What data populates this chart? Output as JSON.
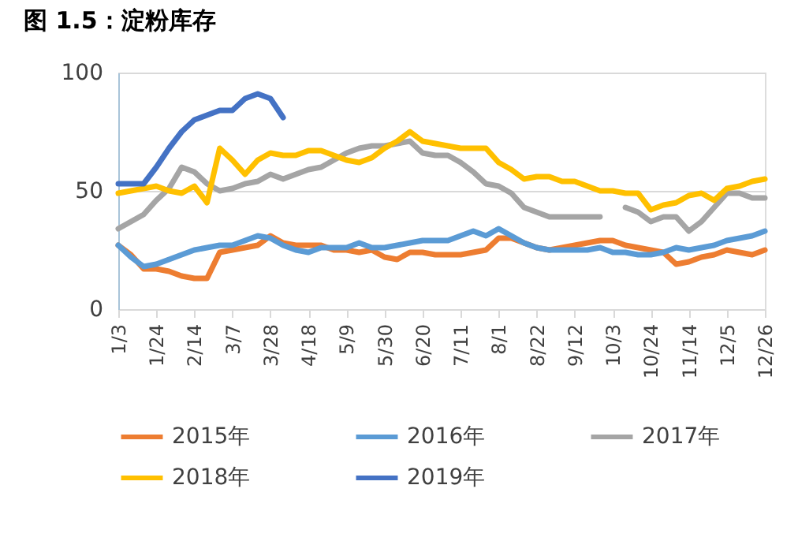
{
  "chart_data": {
    "type": "line",
    "title": "图 1.5：淀粉库存",
    "categories": [
      "1/3",
      null,
      null,
      "1/24",
      null,
      null,
      "2/14",
      null,
      null,
      "3/7",
      null,
      null,
      "3/28",
      null,
      null,
      "4/18",
      null,
      null,
      "5/9",
      null,
      null,
      "5/30",
      null,
      null,
      "6/20",
      null,
      null,
      "7/11",
      null,
      null,
      "8/1",
      null,
      null,
      "8/22",
      null,
      null,
      "9/12",
      null,
      null,
      "10/3",
      null,
      null,
      "10/24",
      null,
      null,
      "11/14",
      null,
      null,
      "12/5",
      null,
      null,
      "12/26"
    ],
    "series": [
      {
        "name": "2015年",
        "color": "#ed7d31",
        "values": [
          27,
          23,
          17,
          17,
          16,
          14,
          13,
          13,
          24,
          25,
          26,
          27,
          31,
          28,
          27,
          27,
          27,
          25,
          25,
          24,
          25,
          22,
          21,
          24,
          24,
          23,
          23,
          23,
          24,
          25,
          30,
          30,
          28,
          26,
          25,
          26,
          27,
          28,
          29,
          29,
          27,
          26,
          25,
          24,
          19,
          20,
          22,
          23,
          25,
          24,
          23,
          25
        ]
      },
      {
        "name": "2016年",
        "color": "#5b9bd5",
        "values": [
          27,
          22,
          18,
          19,
          21,
          23,
          25,
          26,
          27,
          27,
          29,
          31,
          30,
          27,
          25,
          24,
          26,
          26,
          26,
          28,
          26,
          26,
          27,
          28,
          29,
          29,
          29,
          31,
          33,
          31,
          34,
          31,
          28,
          26,
          25,
          25,
          25,
          25,
          26,
          24,
          24,
          23,
          23,
          24,
          26,
          25,
          26,
          27,
          29,
          30,
          31,
          33
        ]
      },
      {
        "name": "2017年",
        "color": "#a5a5a5",
        "values": [
          34,
          37,
          40,
          46,
          51,
          60,
          58,
          53,
          50,
          51,
          53,
          54,
          57,
          55,
          57,
          59,
          60,
          63,
          66,
          68,
          69,
          69,
          70,
          71,
          66,
          65,
          65,
          62,
          58,
          53,
          52,
          49,
          43,
          41,
          39,
          39,
          39,
          39,
          39,
          null,
          43,
          41,
          37,
          39,
          39,
          33,
          37,
          43,
          49,
          49,
          47,
          47
        ]
      },
      {
        "name": "2018年",
        "color": "#ffc000",
        "values": [
          49,
          50,
          51,
          52,
          50,
          49,
          52,
          45,
          68,
          63,
          57,
          63,
          66,
          65,
          65,
          67,
          67,
          65,
          63,
          62,
          64,
          68,
          71,
          75,
          71,
          70,
          69,
          68,
          68,
          68,
          62,
          59,
          55,
          56,
          56,
          54,
          54,
          52,
          50,
          50,
          49,
          49,
          42,
          44,
          45,
          48,
          49,
          46,
          51,
          52,
          54,
          55
        ]
      },
      {
        "name": "2019年",
        "color": "#4472c4",
        "values": [
          53,
          53,
          53,
          60,
          68,
          75,
          80,
          82,
          84,
          84,
          89,
          91,
          89,
          81,
          null,
          null,
          null,
          null,
          null,
          null,
          null,
          null,
          null,
          null,
          null,
          null,
          null,
          null,
          null,
          null,
          null,
          null,
          null,
          null,
          null,
          null,
          null,
          null,
          null,
          null,
          null,
          null,
          null,
          null,
          null,
          null,
          null,
          null,
          null,
          null,
          null,
          null
        ]
      }
    ],
    "ylim": [
      0,
      100
    ],
    "yticks": [
      0,
      50,
      100
    ],
    "grid": "y",
    "legend": "bottom",
    "line_style": "solid"
  }
}
